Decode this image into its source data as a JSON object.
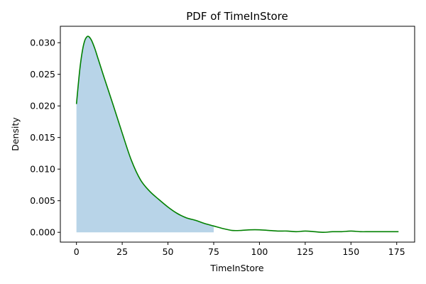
{
  "chart_data": {
    "type": "area",
    "title": "PDF of TimeInStore",
    "xlabel": "TimeInStore",
    "ylabel": "Density",
    "xlim": [
      -8.8,
      184.8
    ],
    "ylim": [
      -0.00155,
      0.0326
    ],
    "xticks": [
      0,
      25,
      50,
      75,
      100,
      125,
      150,
      175
    ],
    "xtick_labels": [
      "0",
      "25",
      "50",
      "75",
      "100",
      "125",
      "150",
      "175"
    ],
    "yticks": [
      0.0,
      0.005,
      0.01,
      0.015,
      0.02,
      0.025,
      0.03
    ],
    "ytick_labels": [
      "0.000",
      "0.005",
      "0.010",
      "0.015",
      "0.020",
      "0.025",
      "0.030"
    ],
    "grid": false,
    "series": [
      {
        "line_color": "#008000",
        "fill_color": "#b8d4e8",
        "fill_range": [
          0,
          75
        ],
        "x": [
          0,
          2,
          4,
          6,
          8,
          10,
          12,
          15,
          20,
          25,
          30,
          35,
          40,
          45,
          50,
          55,
          60,
          65,
          70,
          75,
          80,
          85,
          90,
          95,
          100,
          105,
          110,
          115,
          120,
          125,
          130,
          135,
          140,
          145,
          150,
          155,
          160,
          165,
          170,
          176
        ],
        "y": [
          0.0203,
          0.0262,
          0.0298,
          0.031,
          0.0305,
          0.0291,
          0.0273,
          0.0246,
          0.0202,
          0.0157,
          0.0114,
          0.0083,
          0.0065,
          0.0052,
          0.004,
          0.003,
          0.0023,
          0.0019,
          0.0014,
          0.001,
          0.0006,
          0.0003,
          0.0003,
          0.0004,
          0.0004,
          0.0003,
          0.0002,
          0.0002,
          0.0001,
          0.0002,
          0.0001,
          0.0,
          0.0001,
          0.0001,
          0.0002,
          0.0001,
          0.0001,
          0.0001,
          0.0001,
          0.0001
        ]
      }
    ]
  }
}
